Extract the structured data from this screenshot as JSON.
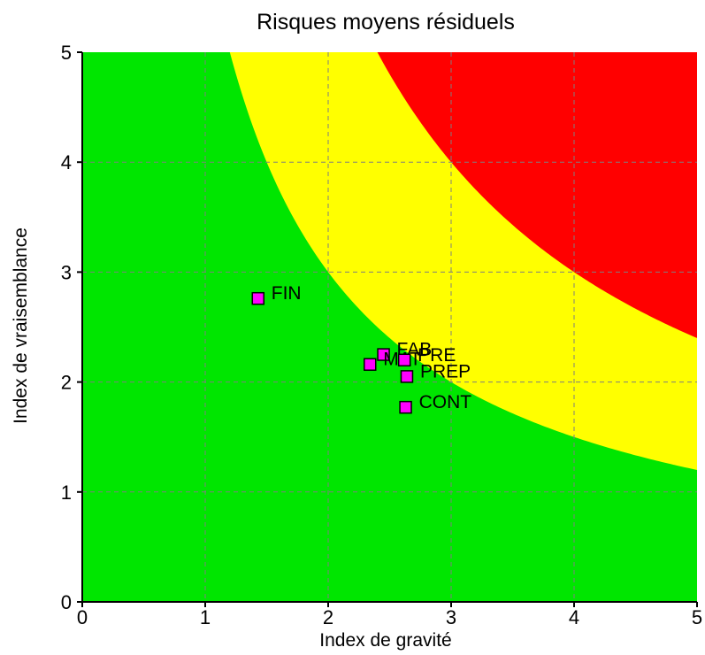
{
  "chart_data": {
    "type": "scatter",
    "title": "Risques moyens résiduels",
    "xlabel": "Index de gravité",
    "ylabel": "Index de vraisemblance",
    "xlim": [
      0,
      5
    ],
    "ylim": [
      0,
      5
    ],
    "x_ticks": [
      "0",
      "1",
      "2",
      "3",
      "4",
      "5"
    ],
    "y_ticks": [
      "0",
      "1",
      "2",
      "3",
      "4",
      "5"
    ],
    "grid": true,
    "zones": [
      {
        "color": "#00e600",
        "product_max": 6
      },
      {
        "color": "#ffff00",
        "product_max": 12
      },
      {
        "color": "#ff0000",
        "product_max": 25
      }
    ],
    "series": [
      {
        "marker_color": "#ff00ff",
        "points": [
          {
            "label": "FIN",
            "x": 1.43,
            "y": 2.76
          },
          {
            "label": "FAB",
            "x": 2.45,
            "y": 2.25
          },
          {
            "label": "MAT",
            "x": 2.34,
            "y": 2.16
          },
          {
            "label": "PRE",
            "x": 2.62,
            "y": 2.2
          },
          {
            "label": "PREP",
            "x": 2.64,
            "y": 2.05
          },
          {
            "label": "CONT",
            "x": 2.63,
            "y": 1.77
          }
        ]
      }
    ]
  }
}
